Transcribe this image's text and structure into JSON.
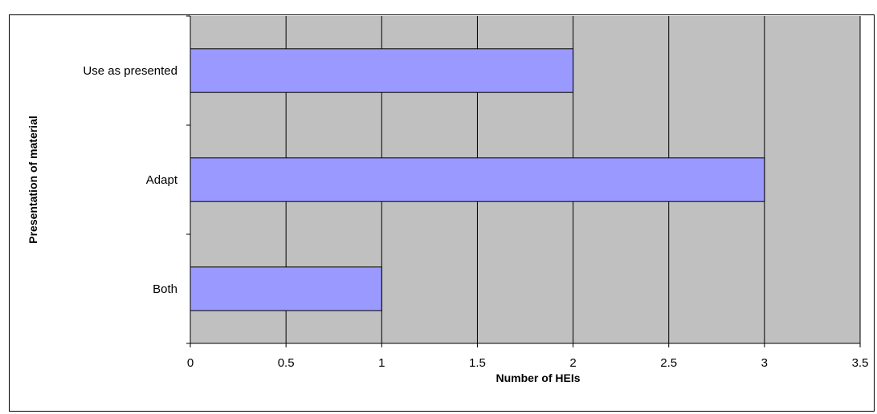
{
  "chart_data": {
    "type": "bar",
    "orientation": "horizontal",
    "title": "",
    "categories": [
      "Use as presented",
      "Adapt",
      "Both"
    ],
    "values": [
      2,
      3,
      1
    ],
    "xlabel": "Number of HEIs",
    "ylabel": "Presentation of material",
    "xlim": [
      0,
      3.5
    ],
    "xticks": [
      "0",
      "0.5",
      "1",
      "1.5",
      "2",
      "2.5",
      "3",
      "3.5"
    ],
    "grid": true,
    "legend": "none",
    "colors": {
      "bar": "#9999ff",
      "plot_background": "#c0c0c0",
      "grid": "#000000",
      "bar_edge": "#000000"
    }
  }
}
